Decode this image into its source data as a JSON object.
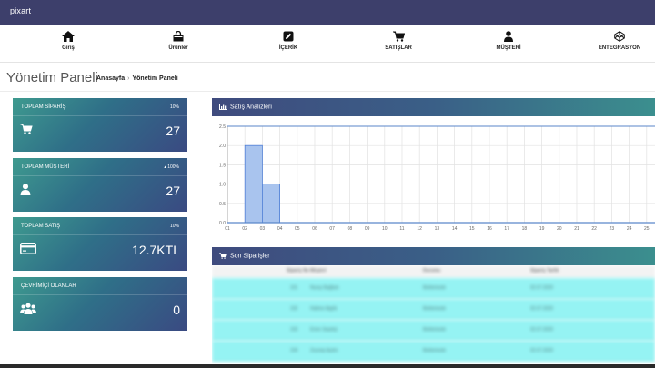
{
  "app": {
    "logo_text": "pixart"
  },
  "nav": {
    "items": [
      {
        "label": "Giriş",
        "icon": "home-icon"
      },
      {
        "label": "Ürünler",
        "icon": "bag-icon"
      },
      {
        "label": "İÇERİK",
        "icon": "edit-icon"
      },
      {
        "label": "SATIŞLAR",
        "icon": "cart-icon"
      },
      {
        "label": "MÜŞTERİ",
        "icon": "user-icon"
      },
      {
        "label": "ENTEGRASYON",
        "icon": "codepen-icon"
      }
    ]
  },
  "page": {
    "title": "Yönetim Paneli",
    "breadcrumb": [
      "Anasayfa",
      "Yönetim Paneli"
    ]
  },
  "cards": [
    {
      "title": "TOPLAM SİPARİŞ",
      "pct": "10%",
      "value": "27",
      "icon": "cart-icon"
    },
    {
      "title": "TOPLAM MÜŞTERİ",
      "pct": "▴ 100%",
      "value": "27",
      "icon": "user-icon"
    },
    {
      "title": "TOPLAM SATIŞ",
      "pct": "10%",
      "value": "12.7KTL",
      "icon": "credit-card-icon"
    },
    {
      "title": "ÇEVRİMİÇİ OLANLAR",
      "pct": "",
      "value": "0",
      "icon": "users-icon"
    }
  ],
  "sales_panel": {
    "title": "Satış Analizleri",
    "icon": "bar-chart-icon"
  },
  "orders_panel": {
    "title": "Son Siparişler",
    "icon": "cart-icon",
    "columns": [
      "Sipariş No",
      "Müşteri",
      "Durumu",
      "Sipariş Tarihi"
    ],
    "rows": [
      [
        "101",
        "Nuray Bağlam",
        "Beklemede",
        "02.07.2020"
      ],
      [
        "102",
        "Halime Atgök",
        "Beklemede",
        "02.07.2020"
      ],
      [
        "103",
        "Emre Sepetçi",
        "Beklemede",
        "02.07.2020"
      ],
      [
        "104",
        "Zeynep Aydın",
        "Beklemede",
        "02.07.2020"
      ]
    ]
  },
  "chart_data": {
    "type": "bar",
    "categories": [
      "01",
      "02",
      "03",
      "04",
      "05",
      "06",
      "07",
      "08",
      "09",
      "10",
      "11",
      "12",
      "13",
      "14",
      "15",
      "16",
      "17",
      "18",
      "19",
      "20",
      "21",
      "22",
      "23",
      "24",
      "25"
    ],
    "values": [
      0,
      2,
      1,
      0,
      0,
      0,
      0,
      0,
      0,
      0,
      0,
      0,
      0,
      0,
      0,
      0,
      0,
      0,
      0,
      0,
      0,
      0,
      0,
      0,
      0
    ],
    "yticks": [
      "0.0",
      "0.5",
      "1.0",
      "1.5",
      "2.0",
      "2.5"
    ],
    "ylim": [
      0,
      2.5
    ],
    "grid": true,
    "bar_color": "#a9c4ee",
    "bar_border": "#4f7fd6",
    "line_color": "#5a86c9"
  }
}
